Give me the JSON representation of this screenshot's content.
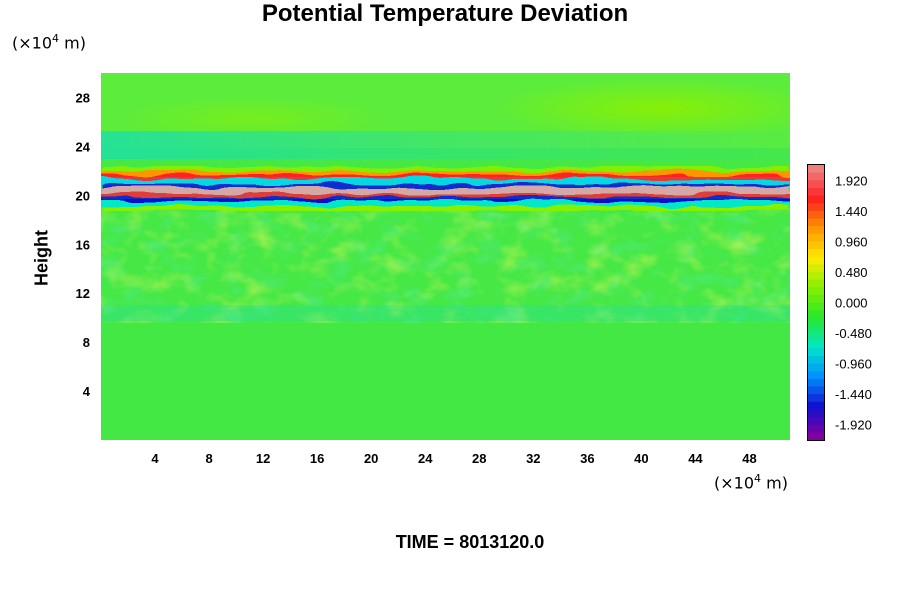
{
  "chart_data": {
    "type": "heatmap",
    "title": "Potential Temperature Deviation",
    "ylabel": "Height",
    "xunit": {
      "prefix": "(×10",
      "exp": "4",
      "suffix": " m)"
    },
    "yunit": {
      "prefix": "(×10",
      "exp": "4",
      "suffix": " m)"
    },
    "xlim": [
      0,
      51
    ],
    "ylim": [
      0,
      30
    ],
    "xticks": [
      4,
      8,
      12,
      16,
      20,
      24,
      28,
      32,
      36,
      40,
      44,
      48
    ],
    "yticks": [
      4,
      8,
      12,
      16,
      20,
      24,
      28
    ],
    "colorbar": {
      "min": -2.16,
      "max": 2.16,
      "tick_labels": [
        "1.920",
        "1.440",
        "0.960",
        "0.480",
        "0.000",
        "-0.480",
        "-0.960",
        "-1.440",
        "-1.920"
      ],
      "colors": [
        "#f08080",
        "#ff2020",
        "#ff9500",
        "#ffea00",
        "#86f000",
        "#28e828",
        "#00e8c8",
        "#0090ff",
        "#1010d0",
        "#8000a0"
      ]
    },
    "field_bands": [
      {
        "y_from": 0,
        "y_to": 11,
        "value": 0.0,
        "texture": "smooth"
      },
      {
        "y_from": 11,
        "y_to": 18.5,
        "value": 0.15,
        "texture": "turbulent"
      },
      {
        "y_from": 18.8,
        "y_to": 21.8,
        "value": 0.0,
        "texture": "strong oscillating band (±1.92)"
      },
      {
        "y_from": 22,
        "y_to": 30,
        "value": 0.3,
        "texture": "smooth"
      }
    ],
    "footer": "TIME = 8013120.0"
  }
}
